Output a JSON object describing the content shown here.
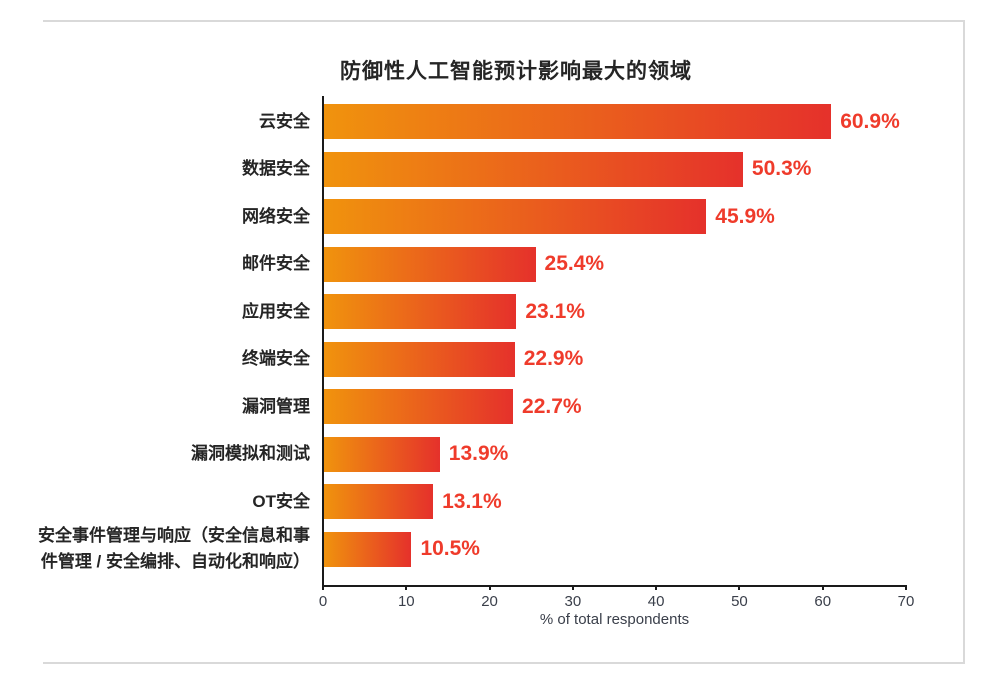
{
  "frame": {
    "border_color": "#D9D9D9"
  },
  "chart_data": {
    "type": "bar",
    "orientation": "horizontal",
    "title": "防御性人工智能预计影响最大的领域",
    "xlabel": "% of total respondents",
    "categories": [
      "云安全",
      "数据安全",
      "网络安全",
      "邮件安全",
      "应用安全",
      "终端安全",
      "漏洞管理",
      "漏洞模拟和测试",
      "OT安全",
      "安全事件管理与响应（安全信息和事件管理 / 安全编排、自动化和响应）"
    ],
    "values": [
      60.9,
      50.3,
      45.9,
      25.4,
      23.1,
      22.9,
      22.7,
      13.9,
      13.1,
      10.5
    ],
    "value_labels": [
      "60.9%",
      "50.3%",
      "45.9%",
      "25.4%",
      "23.1%",
      "22.9%",
      "22.7%",
      "13.9%",
      "13.1%",
      "10.5%"
    ],
    "xlim": [
      0,
      70
    ],
    "xticks": [
      0,
      10,
      20,
      30,
      40,
      50,
      60,
      70
    ],
    "grid": false,
    "legend": "none",
    "colors": {
      "bar_gradient_start": "#F0930D",
      "bar_gradient_end": "#E5312B",
      "value_label": "#EF3B2B",
      "axis": "#1A1A1A",
      "tick_label": "#3A3F4A",
      "title": "#252525",
      "category_label": "#252525"
    }
  }
}
